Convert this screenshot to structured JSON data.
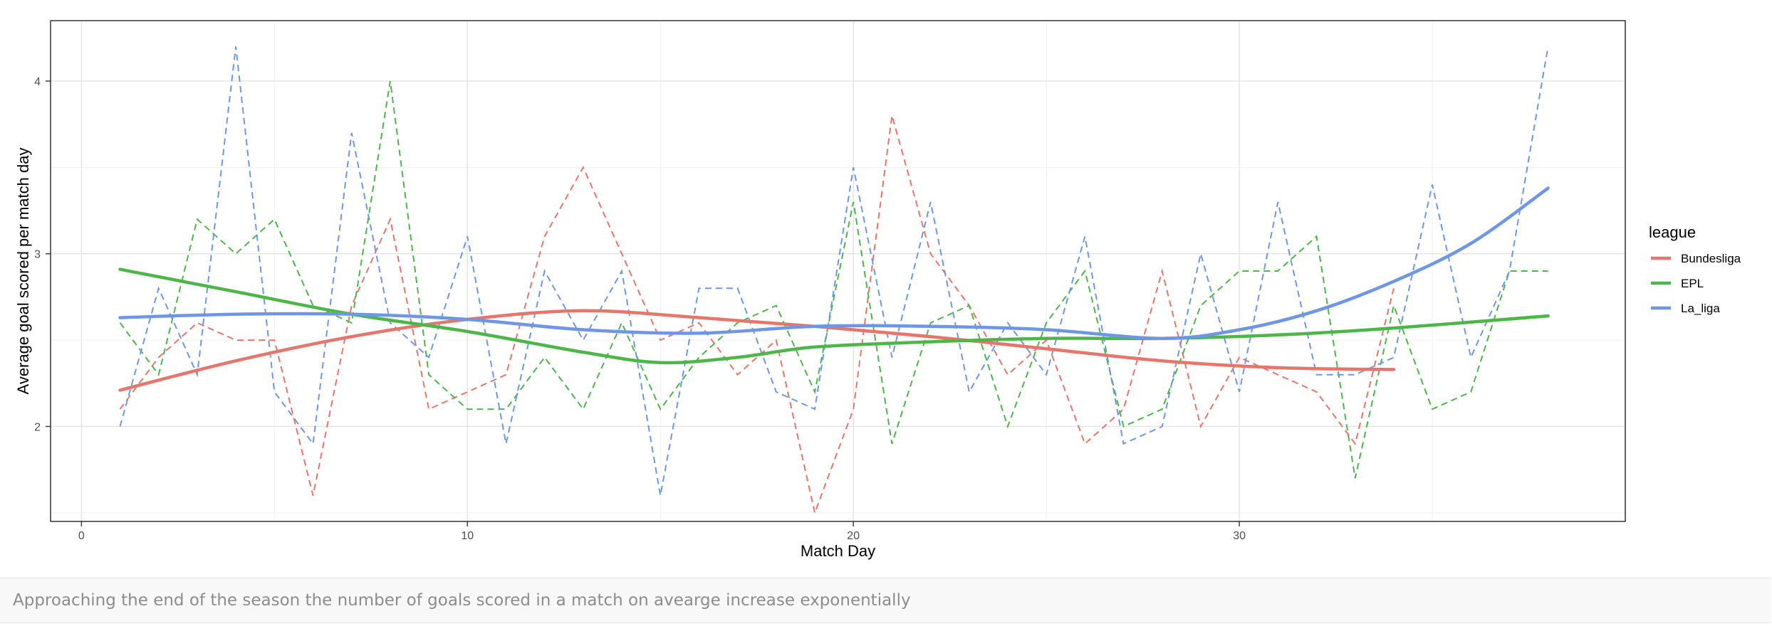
{
  "chart_data": {
    "type": "line",
    "title": "",
    "xlabel": "Match Day",
    "ylabel": "Average goal scored per match day",
    "xlim": [
      -0.8,
      40.0
    ],
    "ylim": [
      1.45,
      4.35
    ],
    "x_ticks": [
      0,
      10,
      20,
      30
    ],
    "y_ticks": [
      2,
      3,
      4
    ],
    "grid": true,
    "legend": {
      "title": "league",
      "placement": "right"
    },
    "series": [
      {
        "name": "Bundesliga",
        "color": "#E7756B",
        "raw": {
          "x": [
            1,
            2,
            3,
            4,
            5,
            6,
            7,
            8,
            9,
            10,
            11,
            12,
            13,
            14,
            15,
            16,
            17,
            18,
            19,
            20,
            21,
            22,
            23,
            24,
            25,
            26,
            27,
            28,
            29,
            30,
            31,
            32,
            33,
            34
          ],
          "y": [
            2.1,
            2.4,
            2.6,
            2.5,
            2.5,
            1.6,
            2.7,
            3.2,
            2.1,
            2.2,
            2.3,
            3.1,
            3.5,
            3.0,
            2.5,
            2.6,
            2.3,
            2.5,
            1.5,
            2.1,
            3.8,
            3.0,
            2.7,
            2.3,
            2.5,
            1.9,
            2.1,
            2.9,
            2.0,
            2.4,
            2.3,
            2.2,
            1.9,
            2.8
          ]
        },
        "smooth": {
          "x": [
            1,
            4,
            7,
            10,
            13,
            16,
            19,
            22,
            25,
            28,
            31,
            34
          ],
          "y": [
            2.21,
            2.38,
            2.52,
            2.62,
            2.67,
            2.63,
            2.58,
            2.52,
            2.45,
            2.38,
            2.34,
            2.33
          ]
        }
      },
      {
        "name": "EPL",
        "color": "#4CB648",
        "raw": {
          "x": [
            1,
            2,
            3,
            4,
            5,
            6,
            7,
            8,
            9,
            10,
            11,
            12,
            13,
            14,
            15,
            16,
            17,
            18,
            19,
            20,
            21,
            22,
            23,
            24,
            25,
            26,
            27,
            28,
            29,
            30,
            31,
            32,
            33,
            34,
            35,
            36,
            37,
            38
          ],
          "y": [
            2.6,
            2.3,
            3.2,
            3.0,
            3.2,
            2.7,
            2.6,
            4.0,
            2.3,
            2.1,
            2.1,
            2.4,
            2.1,
            2.6,
            2.1,
            2.4,
            2.6,
            2.7,
            2.2,
            3.3,
            1.9,
            2.6,
            2.7,
            2.0,
            2.6,
            2.9,
            2.0,
            2.1,
            2.7,
            2.9,
            2.9,
            3.1,
            1.7,
            2.7,
            2.1,
            2.2,
            2.9,
            2.9
          ]
        },
        "smooth": {
          "x": [
            1,
            4,
            7,
            10,
            13,
            15,
            17,
            19,
            22,
            25,
            28,
            31,
            34,
            38
          ],
          "y": [
            2.91,
            2.78,
            2.65,
            2.55,
            2.43,
            2.37,
            2.4,
            2.46,
            2.49,
            2.51,
            2.51,
            2.53,
            2.57,
            2.64
          ]
        }
      },
      {
        "name": "La_liga",
        "color": "#6D97E6",
        "raw": {
          "x": [
            1,
            2,
            3,
            4,
            5,
            6,
            7,
            8,
            9,
            10,
            11,
            12,
            13,
            14,
            15,
            16,
            17,
            18,
            19,
            20,
            21,
            22,
            23,
            24,
            25,
            26,
            27,
            28,
            29,
            30,
            31,
            32,
            33,
            34,
            35,
            36,
            37,
            38
          ],
          "y": [
            2.0,
            2.8,
            2.3,
            4.2,
            2.2,
            1.9,
            3.7,
            2.6,
            2.4,
            3.1,
            1.9,
            2.9,
            2.5,
            2.9,
            1.6,
            2.8,
            2.8,
            2.2,
            2.1,
            3.5,
            2.4,
            3.3,
            2.2,
            2.6,
            2.3,
            3.1,
            1.9,
            2.0,
            3.0,
            2.2,
            3.3,
            2.3,
            2.3,
            2.4,
            3.4,
            2.4,
            2.9,
            4.2
          ]
        },
        "smooth": {
          "x": [
            1,
            4,
            7,
            10,
            13,
            16,
            19,
            22,
            25,
            28,
            30,
            32,
            34,
            36,
            38
          ],
          "y": [
            2.63,
            2.65,
            2.65,
            2.62,
            2.56,
            2.54,
            2.58,
            2.58,
            2.56,
            2.51,
            2.56,
            2.67,
            2.84,
            3.06,
            3.38
          ]
        }
      }
    ]
  },
  "caption": "Approaching the end of the season the number of goals scored in a match on avearge increase exponentially"
}
